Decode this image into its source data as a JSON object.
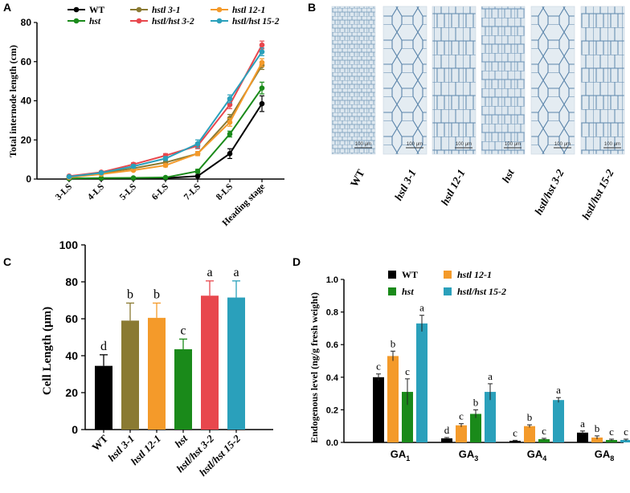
{
  "panel_labels": {
    "a": "A",
    "b": "B",
    "c": "C",
    "d": "D"
  },
  "colors": {
    "WT": "#000000",
    "hst": "#1a8a1a",
    "hstl 3-1": "#8a7a32",
    "hstl/hst 3-2": "#e8474d",
    "hstl 12-1": "#f49a2a",
    "hstl/hst 15-2": "#2aa0bb",
    "cell_bg": "#dde7ef",
    "cell_wall": "#4f7fa8"
  },
  "panel_b": {
    "labels": [
      "WT",
      "hstl 3-1",
      "hstl 12-1",
      "hst",
      "hstl/hst 3-2",
      "hstl/hst 15-2"
    ],
    "scale_label": "100 μm"
  },
  "chart_data": [
    {
      "panel": "A",
      "type": "line",
      "title": "",
      "xlabel": "",
      "ylabel": "Total internode length (cm)",
      "ylim": [
        0,
        80
      ],
      "yticks": [
        0,
        20,
        40,
        60,
        80
      ],
      "categories": [
        "3-LS",
        "4-LS",
        "5-LS",
        "6-LS",
        "7-LS",
        "8-LS",
        "Heading stage"
      ],
      "legend_position": "top",
      "series": [
        {
          "name": "WT",
          "values": [
            0.2,
            0.3,
            0.4,
            0.5,
            1.5,
            13,
            38.5
          ],
          "errors": [
            0.2,
            0.2,
            0.2,
            0.3,
            0.5,
            2.5,
            4
          ]
        },
        {
          "name": "hst",
          "values": [
            0.3,
            0.5,
            0.6,
            0.8,
            4,
            23,
            46.5
          ],
          "errors": [
            0.2,
            0.2,
            0.3,
            0.3,
            1,
            1.5,
            3
          ]
        },
        {
          "name": "hstl 3-1",
          "values": [
            1,
            3,
            5.5,
            8.5,
            13,
            31,
            58
          ],
          "errors": [
            0.3,
            0.5,
            0.5,
            0.8,
            1,
            2,
            2
          ]
        },
        {
          "name": "hstl/hst 3-2",
          "values": [
            1.5,
            3.5,
            7.5,
            12,
            17,
            38,
            68.5
          ],
          "errors": [
            0.3,
            0.5,
            0.8,
            1,
            1.5,
            2,
            2
          ]
        },
        {
          "name": "hstl 12-1",
          "values": [
            0.8,
            2.5,
            4.5,
            7,
            13,
            29,
            59.5
          ],
          "errors": [
            0.3,
            0.5,
            0.5,
            0.8,
            1,
            2,
            2
          ]
        },
        {
          "name": "hstl/hst 15-2",
          "values": [
            1.2,
            3.2,
            6.5,
            10.5,
            18,
            41,
            65
          ],
          "errors": [
            0.3,
            0.5,
            0.8,
            1,
            2,
            2,
            2
          ]
        }
      ]
    },
    {
      "panel": "C",
      "type": "bar",
      "title": "",
      "xlabel": "",
      "ylabel": "Cell Length (μm)",
      "ylim": [
        0,
        100
      ],
      "yticks": [
        0,
        20,
        40,
        60,
        80,
        100
      ],
      "categories": [
        "WT",
        "hstl 3-1",
        "hstl 12-1",
        "hst",
        "hstl/hst 3-2",
        "hstl/hst 15-2"
      ],
      "values": [
        34.5,
        59,
        60.5,
        43.5,
        72.5,
        71.5
      ],
      "errors": [
        6,
        9.5,
        8,
        5.5,
        8,
        9
      ],
      "letters": [
        "d",
        "b",
        "b",
        "c",
        "a",
        "a"
      ]
    },
    {
      "panel": "D",
      "type": "bar",
      "title": "",
      "xlabel": "",
      "ylabel": "Endogenous level (ng/g fresh weight)",
      "ylim": [
        0,
        1.0
      ],
      "yticks": [
        "0.0",
        "0.2",
        "0.4",
        "0.6",
        "0.8",
        "1.0"
      ],
      "categories": [
        {
          "base": "GA",
          "sub": "1"
        },
        {
          "base": "GA",
          "sub": "3"
        },
        {
          "base": "GA",
          "sub": "4"
        },
        {
          "base": "GA",
          "sub": "8"
        }
      ],
      "legend_position": "top",
      "series": [
        {
          "name": "WT",
          "values": [
            0.4,
            0.025,
            0.01,
            0.06
          ],
          "errors": [
            0.02,
            0.005,
            0.003,
            0.01
          ],
          "letters": [
            "c",
            "d",
            "c",
            "a"
          ]
        },
        {
          "name": "hstl 12-1",
          "values": [
            0.53,
            0.105,
            0.1,
            0.03
          ],
          "errors": [
            0.03,
            0.01,
            0.008,
            0.01
          ],
          "letters": [
            "b",
            "c",
            "b",
            "b"
          ]
        },
        {
          "name": "hst",
          "values": [
            0.31,
            0.175,
            0.02,
            0.015
          ],
          "errors": [
            0.08,
            0.025,
            0.005,
            0.005
          ],
          "letters": [
            "c",
            "b",
            "c",
            "c"
          ]
        },
        {
          "name": "hstl/hst 15-2",
          "values": [
            0.73,
            0.31,
            0.26,
            0.015
          ],
          "errors": [
            0.05,
            0.05,
            0.015,
            0.005
          ],
          "letters": [
            "a",
            "a",
            "a",
            "c"
          ]
        }
      ]
    }
  ]
}
